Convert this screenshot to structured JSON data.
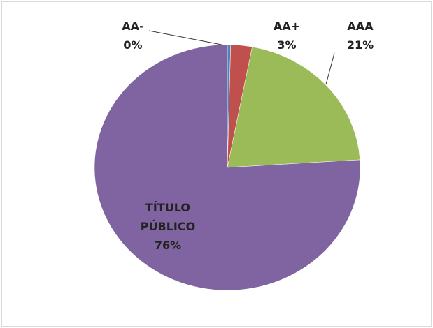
{
  "chart_data": {
    "type": "pie",
    "categories": [
      "AA-",
      "AA+",
      "AAA",
      "TÍTULO PÚBLICO"
    ],
    "values": [
      0.4,
      2.6,
      21,
      76
    ],
    "value_labels": [
      "0%",
      "3%",
      "21%",
      "76%"
    ],
    "colors": [
      "#4f81bd",
      "#c0504d",
      "#9bbb59",
      "#8064a2"
    ]
  }
}
